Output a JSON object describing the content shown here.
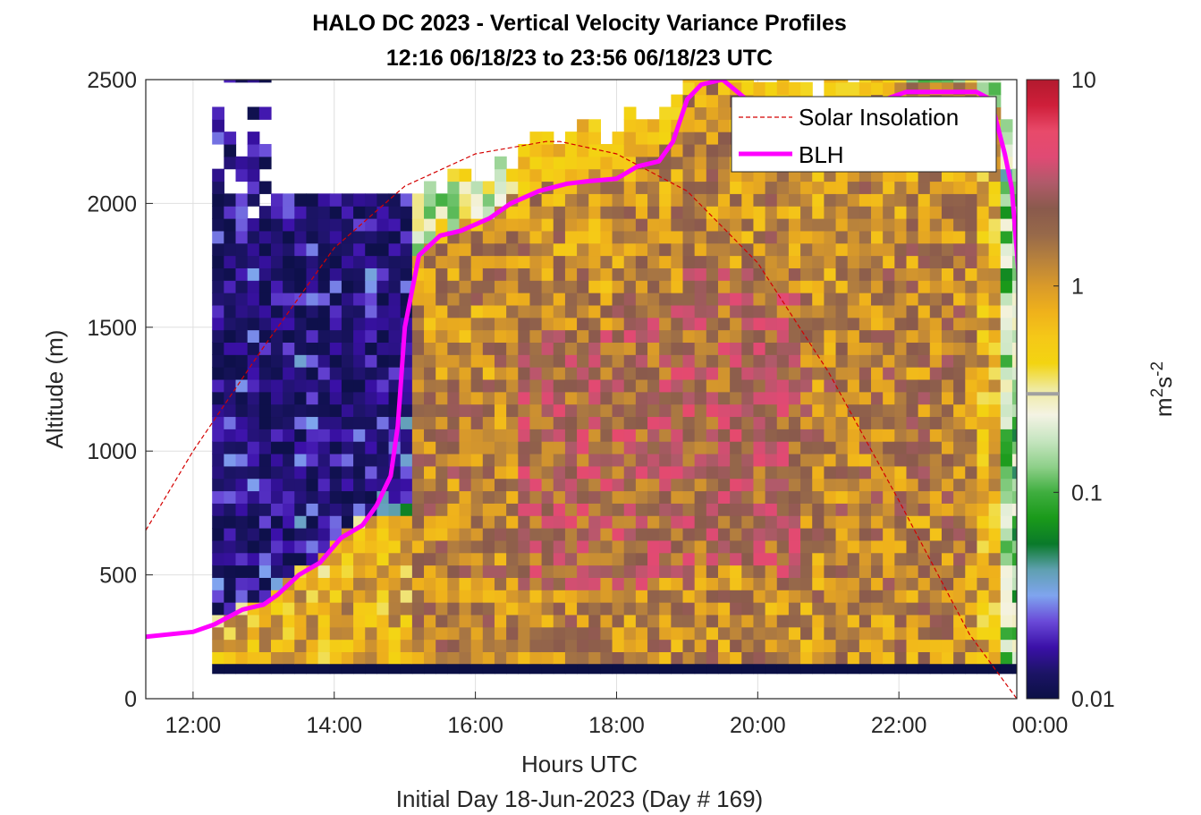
{
  "chart_data": {
    "type": "heatmap",
    "title_line1": "HALO DC 2023 - Vertical Velocity Variance Profiles",
    "title_line2": "12:16 06/18/23 to 23:56 06/18/23  UTC",
    "xlabel": "Hours UTC",
    "xlabel2": "Initial Day 18-Jun-2023 (Day # 169)",
    "ylabel": "Altitude (m)",
    "xlim_hours": [
      11.33,
      23.67
    ],
    "ylim": [
      0,
      2500
    ],
    "x_ticks": [
      {
        "value": 12,
        "label": "12:00"
      },
      {
        "value": 14,
        "label": "14:00"
      },
      {
        "value": 16,
        "label": "16:00"
      },
      {
        "value": 18,
        "label": "18:00"
      },
      {
        "value": 20,
        "label": "20:00"
      },
      {
        "value": 22,
        "label": "22:00"
      },
      {
        "value": 24,
        "label": "00:00"
      }
    ],
    "y_ticks": [
      {
        "value": 0,
        "label": "0"
      },
      {
        "value": 500,
        "label": "500"
      },
      {
        "value": 1000,
        "label": "1000"
      },
      {
        "value": 1500,
        "label": "1500"
      },
      {
        "value": 2000,
        "label": "2000"
      },
      {
        "value": 2500,
        "label": "2500"
      }
    ],
    "grid": true,
    "colorbar": {
      "scale": "log",
      "range": [
        0.01,
        10
      ],
      "ticks": [
        {
          "value": 0.01,
          "label": "0.01"
        },
        {
          "value": 0.1,
          "label": "0.1"
        },
        {
          "value": 1,
          "label": "1"
        },
        {
          "value": 10,
          "label": "10"
        }
      ],
      "label_base": "m",
      "label_sup1": "2",
      "label_mid": "s",
      "label_sup2": "-2",
      "colors": [
        "#0b0f45",
        "#1c1466",
        "#3b10a8",
        "#6a4ad8",
        "#7fa4ef",
        "#5fa0b0",
        "#0a7a2a",
        "#1a9a1a",
        "#3fae3f",
        "#8fd08a",
        "#c6e5c0",
        "#f4f3e4",
        "#efeaa0",
        "#f3d411",
        "#f5c818",
        "#efb11b",
        "#d99a2a",
        "#b8823c",
        "#97694a",
        "#8a5a4c",
        "#b05a6a",
        "#e04a74",
        "#e84a6a",
        "#cf1f3a",
        "#b21a2e"
      ]
    },
    "time_range_hours": [
      12.27,
      23.93
    ],
    "cell_width_hours": 0.1667,
    "cell_height_m": 50,
    "ground_band_m": [
      100,
      140
    ],
    "variance_grid_note": "per-column variance values (m2 s-2) at 50 m steps from 100 m",
    "series": [
      {
        "name": "Solar Insolation",
        "style": "dashed",
        "color": "#d40000",
        "x": [
          11.33,
          12.0,
          13.0,
          14.0,
          15.0,
          16.0,
          17.0,
          17.2,
          18.0,
          19.0,
          20.0,
          21.0,
          22.0,
          23.0,
          23.67
        ],
        "y": [
          680,
          1000,
          1420,
          1820,
          2070,
          2200,
          2250,
          2250,
          2200,
          2050,
          1760,
          1320,
          800,
          260,
          0
        ]
      },
      {
        "name": "BLH",
        "style": "solid",
        "color": "#ff00ff",
        "segments": [
          {
            "x": [
              11.33,
              12.0,
              12.3,
              12.7,
              13.0,
              13.2,
              13.5,
              13.8,
              14.1,
              14.4,
              14.6,
              14.8,
              14.9,
              15.0,
              15.2,
              15.5,
              15.8,
              16.2,
              16.5,
              16.9,
              17.3,
              17.6,
              18.0,
              18.3,
              18.6,
              18.8,
              19.0,
              19.2,
              19.5,
              19.8,
              20.1,
              20.3,
              20.5,
              20.8,
              21.1,
              21.5,
              21.8,
              22.1,
              22.4,
              22.6,
              22.8,
              23.1,
              23.3,
              23.5,
              23.6,
              23.7,
              23.9,
              24.1,
              24.2,
              24.4
            ],
            "y": [
              250,
              270,
              300,
              360,
              380,
              420,
              500,
              550,
              650,
              700,
              780,
              900,
              1100,
              1500,
              1790,
              1870,
              1890,
              1940,
              2000,
              2050,
              2080,
              2090,
              2100,
              2150,
              2170,
              2250,
              2420,
              2480,
              2500,
              2430,
              2350,
              2320,
              2300,
              2250,
              2300,
              2350,
              2420,
              2450,
              2450,
              2450,
              2450,
              2450,
              2420,
              2200,
              2060,
              1700,
              1300,
              1050,
              800,
              720
            ]
          },
          {
            "x": [
              24.45,
              24.65
            ],
            "y": [
              680,
              580
            ]
          }
        ]
      }
    ],
    "legend": {
      "placement": "top-right",
      "entries": [
        "Solar Insolation",
        "BLH"
      ]
    }
  }
}
